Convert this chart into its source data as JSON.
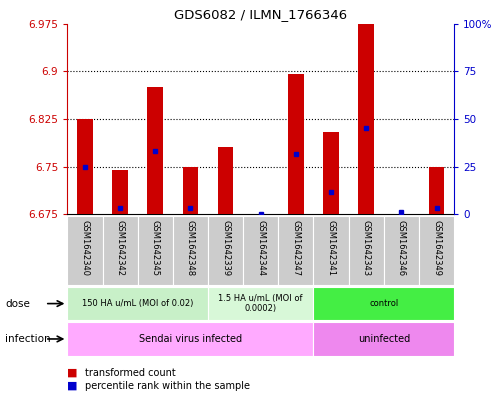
{
  "title": "GDS6082 / ILMN_1766346",
  "samples": [
    "GSM1642340",
    "GSM1642342",
    "GSM1642345",
    "GSM1642348",
    "GSM1642339",
    "GSM1642344",
    "GSM1642347",
    "GSM1642341",
    "GSM1642343",
    "GSM1642346",
    "GSM1642349"
  ],
  "bar_values": [
    6.825,
    6.745,
    6.875,
    6.75,
    6.78,
    6.665,
    6.895,
    6.805,
    6.975,
    6.665,
    6.75
  ],
  "bar_base": 6.675,
  "blue_values": [
    6.75,
    6.685,
    6.775,
    6.685,
    6.665,
    6.675,
    6.77,
    6.71,
    6.81,
    6.678,
    6.685
  ],
  "ylim_min": 6.675,
  "ylim_max": 6.975,
  "yticks": [
    6.675,
    6.75,
    6.825,
    6.9,
    6.975
  ],
  "ytick_labels": [
    "6.675",
    "6.75",
    "6.825",
    "6.9",
    "6.975"
  ],
  "right_yticks": [
    0,
    25,
    50,
    75,
    100
  ],
  "right_ytick_labels": [
    "0",
    "25",
    "50",
    "75",
    "100%"
  ],
  "dose_groups": [
    {
      "label": "150 HA u/mL (MOI of 0.02)",
      "start": 0,
      "end": 4,
      "color": "#c8f0c8"
    },
    {
      "label": "1.5 HA u/mL (MOI of\n0.0002)",
      "start": 4,
      "end": 7,
      "color": "#d8f8d8"
    },
    {
      "label": "control",
      "start": 7,
      "end": 11,
      "color": "#44ee44"
    }
  ],
  "infection_groups": [
    {
      "label": "Sendai virus infected",
      "start": 0,
      "end": 7,
      "color": "#ffaaff"
    },
    {
      "label": "uninfected",
      "start": 7,
      "end": 11,
      "color": "#ee88ee"
    }
  ],
  "bar_color": "#cc0000",
  "blue_color": "#0000cc",
  "axis_color_left": "#cc0000",
  "axis_color_right": "#0000cc",
  "grid_color": "#000000",
  "background_color": "#ffffff",
  "sample_bg_color": "#cccccc"
}
